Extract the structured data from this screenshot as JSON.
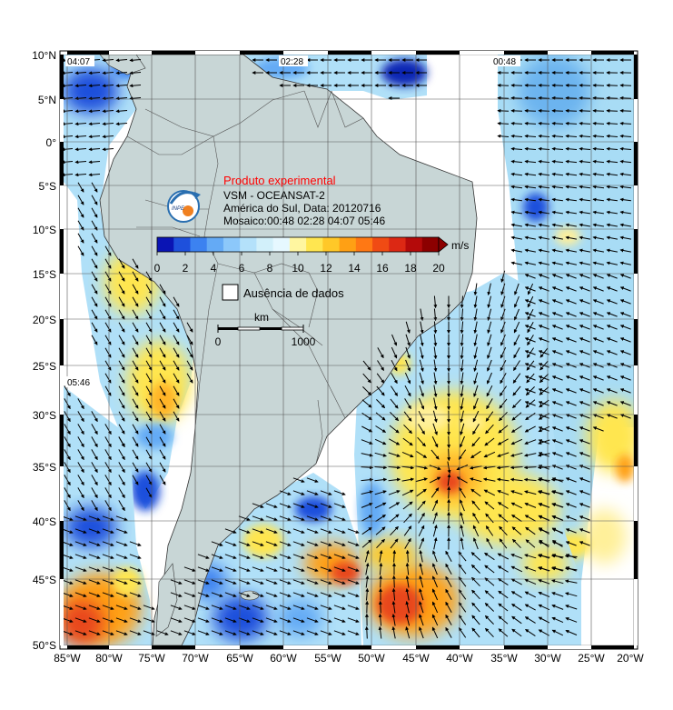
{
  "map": {
    "lat_labels": [
      "10°N",
      "5°N",
      "0°",
      "5°S",
      "10°S",
      "15°S",
      "20°S",
      "25°S",
      "30°S",
      "35°S",
      "40°S",
      "45°S",
      "50°S"
    ],
    "lon_labels": [
      "85°W",
      "80°W",
      "75°W",
      "70°W",
      "65°W",
      "60°W",
      "55°W",
      "50°W",
      "45°W",
      "40°W",
      "35°W",
      "30°W",
      "25°W",
      "20°W"
    ],
    "pass_times": [
      "04:07",
      "02:28",
      "00:48",
      "05:46"
    ],
    "colors": {
      "ocean_no_data": "#ffffff",
      "land": "#c8d6d6",
      "grid": "#555555",
      "arrow": "#000000"
    },
    "wind_fields": [
      {
        "region": "north-atlantic-pass",
        "level": "low-medium"
      },
      {
        "region": "south-atlantic-central",
        "level": "high",
        "peak_location": "37°S 42°W"
      },
      {
        "region": "pacific-south",
        "level": "high"
      }
    ]
  },
  "legend": {
    "title": "Produto experimental",
    "title_color": "#ff0000",
    "line1": "VSM - OCEANSAT-2",
    "line2": "América do Sul, Data: 20120716",
    "line3": "Mosaico:00:48 02:28 04:07 05:46",
    "logo_icon": "inpe-logo-icon",
    "logo_text": "INPE",
    "colorbar": {
      "ticks": [
        "0",
        "2",
        "4",
        "6",
        "8",
        "10",
        "12",
        "14",
        "16",
        "18",
        "20"
      ],
      "unit": "m/s",
      "min": 0,
      "max": 20,
      "colors": [
        "#0a14b4",
        "#1e50dc",
        "#3c82f0",
        "#64aaf5",
        "#8cc8fa",
        "#b4e1fa",
        "#d2f0fa",
        "#e6f8ff",
        "#fff6a0",
        "#ffe650",
        "#ffc828",
        "#ffa014",
        "#ff7814",
        "#f04b14",
        "#dc2814",
        "#b40a0a",
        "#8c0000"
      ]
    },
    "no_data_label": "Ausência de dados",
    "scale_unit": "km",
    "scale_ticks": [
      "0",
      "1000"
    ]
  }
}
